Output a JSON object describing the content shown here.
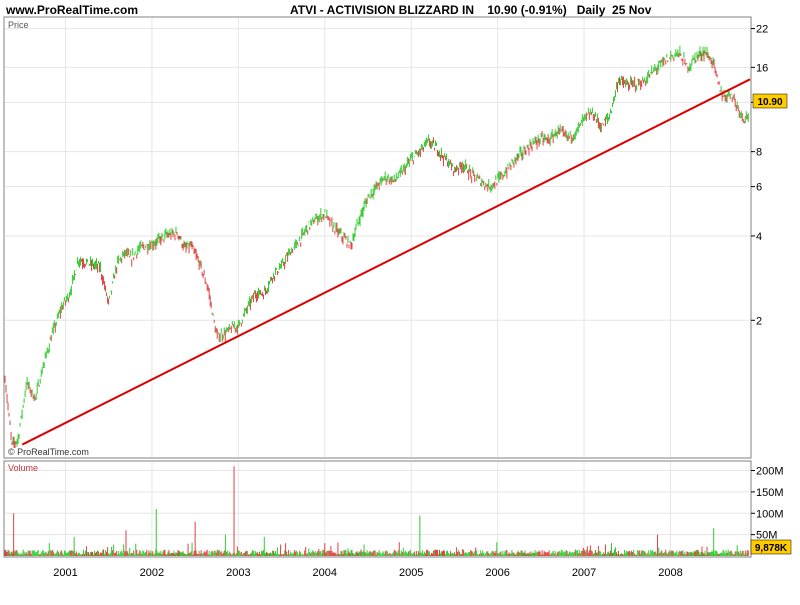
{
  "header": {
    "site": "www.ProRealTime.com",
    "title": "ATVI - ACTIVISION BLIZZARD IN    10.90 (-0.91%)   Daily  25 Nov"
  },
  "price_panel": {
    "label": "Price",
    "watermark": "© ProRealTime.com",
    "last_price_badge": "10.90",
    "y_ticks": [
      "22",
      "16",
      "12",
      "8",
      "6",
      "4",
      "2"
    ]
  },
  "volume_panel": {
    "label": "Volume",
    "last_volume_badge": "9,878K",
    "y_ticks": [
      "200M",
      "150M",
      "100M",
      "50M"
    ]
  },
  "x_ticks": [
    "2001",
    "2002",
    "2003",
    "2004",
    "2005",
    "2006",
    "2007",
    "2008"
  ],
  "colors": {
    "up": "#2ecc2e",
    "down": "#e04040",
    "trendline": "#dd0000",
    "badge": "#ffcc00",
    "grid": "#e6e6e6",
    "frame": "#808080"
  },
  "chart_data": [
    {
      "type": "line",
      "title": "ATVI - ACTIVISION BLIZZARD IN    10.90 (-0.91%)   Daily  25 Nov",
      "scale": "log",
      "ylim": [
        0.65,
        24
      ],
      "xlim": [
        2000.3,
        2008.92
      ],
      "grid": true,
      "series": [
        {
          "x": [
            2000.3,
            2000.38,
            2000.45,
            2000.55,
            2000.65,
            2000.75,
            2000.85,
            2000.95,
            2001.05,
            2001.15,
            2001.25,
            2001.4,
            2001.5,
            2001.6,
            2001.7,
            2001.75,
            2001.85,
            2001.95,
            2002.05,
            2002.15,
            2002.3,
            2002.38,
            2002.45,
            2002.55,
            2002.65,
            2002.75,
            2002.85,
            2002.95,
            2003.0,
            2003.1,
            2003.2,
            2003.3,
            2003.4,
            2003.5,
            2003.6,
            2003.7,
            2003.8,
            2003.9,
            2004.0,
            2004.1,
            2004.2,
            2004.3,
            2004.4,
            2004.5,
            2004.6,
            2004.7,
            2004.8,
            2004.9,
            2005.0,
            2005.1,
            2005.2,
            2005.3,
            2005.4,
            2005.5,
            2005.6,
            2005.7,
            2005.8,
            2005.9,
            2006.0,
            2006.1,
            2006.2,
            2006.3,
            2006.4,
            2006.5,
            2006.6,
            2006.7,
            2006.8,
            2006.9,
            2007.0,
            2007.1,
            2007.2,
            2007.3,
            2007.4,
            2007.5,
            2007.6,
            2007.7,
            2007.8,
            2007.9,
            2008.0,
            2008.1,
            2008.2,
            2008.3,
            2008.4,
            2008.5,
            2008.55,
            2008.62,
            2008.7,
            2008.78,
            2008.85,
            2008.9
          ],
          "values": [
            1.25,
            0.72,
            0.75,
            1.2,
            1.05,
            1.4,
            1.8,
            2.2,
            2.5,
            3.3,
            3.2,
            3.1,
            2.3,
            3.2,
            3.5,
            3.3,
            3.6,
            3.7,
            3.8,
            4.0,
            4.1,
            3.6,
            3.7,
            3.2,
            2.6,
            1.75,
            1.8,
            1.9,
            1.9,
            2.2,
            2.5,
            2.5,
            2.9,
            3.1,
            3.5,
            3.8,
            4.3,
            4.6,
            4.8,
            4.3,
            4.0,
            3.7,
            4.6,
            5.5,
            6.0,
            6.5,
            6.3,
            6.8,
            7.5,
            8.0,
            8.7,
            8.2,
            7.5,
            6.9,
            7.2,
            6.6,
            6.3,
            6.0,
            6.3,
            6.8,
            7.5,
            8.0,
            8.5,
            8.9,
            8.8,
            9.5,
            9.0,
            9.3,
            10.5,
            11.0,
            9.8,
            10.8,
            14.5,
            13.8,
            14.0,
            14.2,
            15.5,
            16.5,
            17.5,
            18.0,
            16.0,
            17.5,
            18.2,
            16.5,
            14.0,
            12.5,
            13.0,
            11.5,
            10.5,
            10.9
          ]
        },
        {
          "name": "",
          "x": [
            2000.5,
            2008.92
          ],
          "values": [
            0.72,
            14.5
          ]
        }
      ]
    },
    {
      "type": "bar",
      "ylim": [
        0,
        220
      ],
      "xlim": [
        2000.3,
        2008.92
      ],
      "x": [
        2000.4,
        2001.1,
        2001.7,
        2002.05,
        2002.5,
        2002.85,
        2002.95,
        2003.3,
        2004.0,
        2005.1,
        2007.85,
        2008.5
      ],
      "values": [
        100,
        45,
        60,
        110,
        80,
        50,
        210,
        45,
        30,
        95,
        50,
        65
      ]
    }
  ]
}
